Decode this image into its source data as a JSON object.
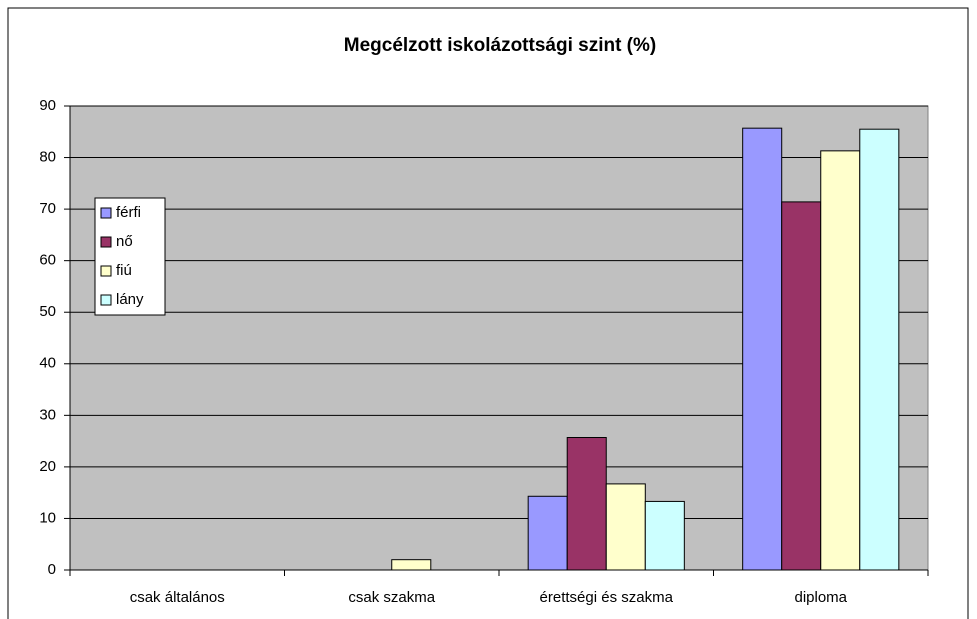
{
  "chart_data": {
    "type": "bar",
    "title": "Megcélzott iskolázottsági szint (%)",
    "categories": [
      "csak általános",
      "csak szakma",
      "érettségi és szakma",
      "diploma"
    ],
    "series": [
      {
        "name": "férfi",
        "color": "#9999ff",
        "values": [
          0,
          0,
          14.3,
          85.7
        ]
      },
      {
        "name": "nő",
        "color": "#993366",
        "values": [
          0,
          0,
          25.7,
          71.4
        ]
      },
      {
        "name": "fiú",
        "color": "#ffffcc",
        "values": [
          0,
          2,
          16.7,
          81.3
        ]
      },
      {
        "name": "lány",
        "color": "#ccffff",
        "values": [
          0,
          0,
          13.3,
          85.5
        ]
      }
    ],
    "ylim": [
      0,
      90
    ],
    "yticks": [
      0,
      10,
      20,
      30,
      40,
      50,
      60,
      70,
      80,
      90
    ],
    "grid": true,
    "legend": "left",
    "background": "#c0c0c0"
  }
}
